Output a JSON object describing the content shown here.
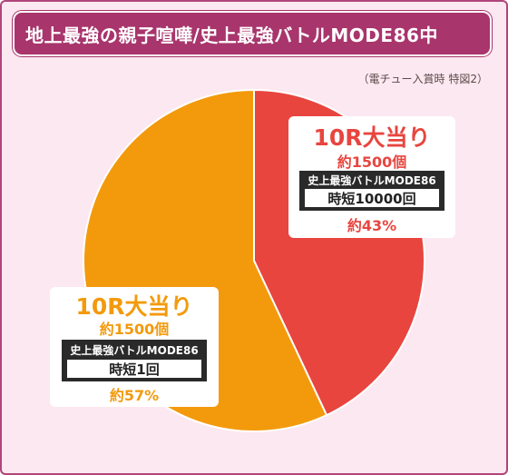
{
  "title": "地上最強の親子喧嘩/史上最強バトルMODE86中",
  "note": "（電チュー入賞時 特図2）",
  "colors": {
    "accent": "#a8356c",
    "red": "#e8453f",
    "orange": "#f39a0c"
  },
  "chart_data": {
    "type": "pie",
    "slices": [
      {
        "value": 43,
        "title": "10R大当り",
        "count": "約1500個",
        "mode": "史上最強バトルMODE86",
        "jitan": "時短10000回",
        "percent": "約43%",
        "color": "#e8453f"
      },
      {
        "value": 57,
        "title": "10R大当り",
        "count": "約1500個",
        "mode": "史上最強バトルMODE86",
        "jitan": "時短1回",
        "percent": "約57%",
        "color": "#f39a0c"
      }
    ]
  }
}
